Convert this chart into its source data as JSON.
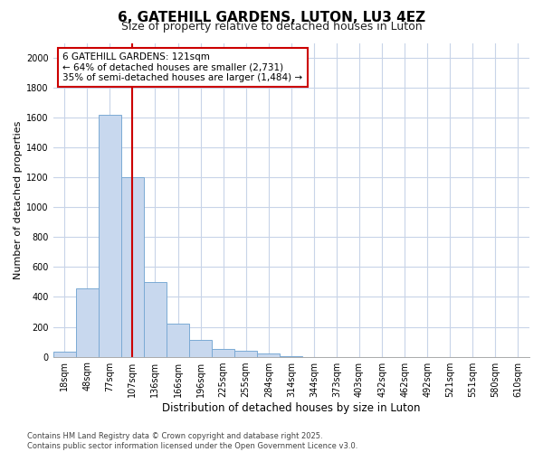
{
  "title1": "6, GATEHILL GARDENS, LUTON, LU3 4EZ",
  "title2": "Size of property relative to detached houses in Luton",
  "xlabel": "Distribution of detached houses by size in Luton",
  "ylabel": "Number of detached properties",
  "categories": [
    "18sqm",
    "48sqm",
    "77sqm",
    "107sqm",
    "136sqm",
    "166sqm",
    "196sqm",
    "225sqm",
    "255sqm",
    "284sqm",
    "314sqm",
    "344sqm",
    "373sqm",
    "403sqm",
    "432sqm",
    "462sqm",
    "492sqm",
    "521sqm",
    "551sqm",
    "580sqm",
    "610sqm"
  ],
  "values": [
    35,
    455,
    1620,
    1200,
    500,
    220,
    115,
    50,
    40,
    20,
    5,
    0,
    0,
    0,
    0,
    0,
    0,
    0,
    0,
    0,
    0
  ],
  "bar_color": "#c8d8ee",
  "bar_edge_color": "#7baad4",
  "vline_x": 3,
  "vline_color": "#cc0000",
  "annotation_text": "6 GATEHILL GARDENS: 121sqm\n← 64% of detached houses are smaller (2,731)\n35% of semi-detached houses are larger (1,484) →",
  "annotation_box_color": "#ffffff",
  "annotation_box_edge": "#cc0000",
  "ylim": [
    0,
    2100
  ],
  "yticks": [
    0,
    200,
    400,
    600,
    800,
    1000,
    1200,
    1400,
    1600,
    1800,
    2000
  ],
  "grid_color": "#c8d4e8",
  "background_color": "#ffffff",
  "plot_bg_color": "#ffffff",
  "footer1": "Contains HM Land Registry data © Crown copyright and database right 2025.",
  "footer2": "Contains public sector information licensed under the Open Government Licence v3.0.",
  "title_fontsize": 11,
  "subtitle_fontsize": 9,
  "xlabel_fontsize": 8.5,
  "ylabel_fontsize": 8,
  "tick_fontsize": 7,
  "footer_fontsize": 6,
  "annot_fontsize": 7.5
}
